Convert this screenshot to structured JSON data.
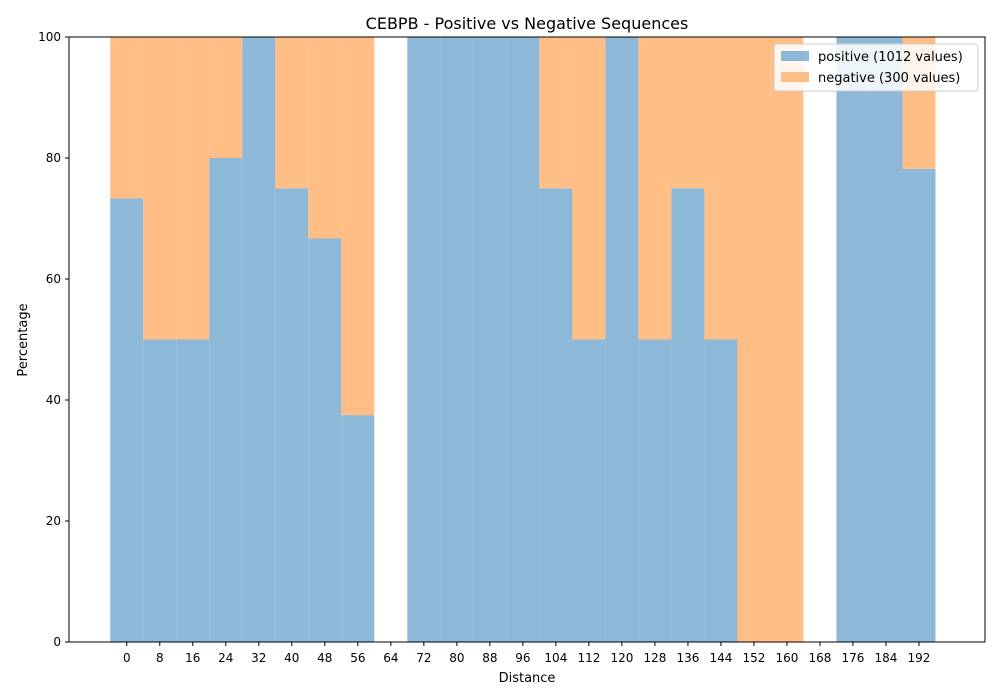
{
  "chart_data": {
    "type": "bar",
    "title": "CEBPB - Positive vs Negative Sequences",
    "xlabel": "Distance",
    "ylabel": "Percentage",
    "ylim": [
      0,
      100
    ],
    "yticks": [
      0,
      20,
      40,
      60,
      80,
      100
    ],
    "xticks": [
      0,
      8,
      16,
      24,
      32,
      40,
      48,
      56,
      64,
      72,
      80,
      88,
      96,
      104,
      112,
      120,
      128,
      136,
      144,
      152,
      160,
      168,
      176,
      184,
      192
    ],
    "x_range": [
      -14,
      208
    ],
    "bin_width": 8,
    "grid": false,
    "legend_position": "top-right",
    "x": [
      0,
      8,
      16,
      24,
      32,
      40,
      48,
      56,
      64,
      72,
      80,
      88,
      96,
      104,
      112,
      120,
      128,
      136,
      144,
      152,
      160,
      168,
      176,
      184,
      192
    ],
    "series": [
      {
        "name": "positive (1012 values)",
        "color": "#8db8d8",
        "values": [
          73.3,
          50,
          50,
          80,
          100,
          75,
          66.7,
          37.5,
          null,
          100,
          100,
          100,
          100,
          75,
          50,
          100,
          50,
          75,
          50,
          0,
          0,
          null,
          100,
          100,
          78.2
        ]
      },
      {
        "name": "negative (300 values)",
        "color": "#ffbe86",
        "values": [
          26.7,
          50,
          50,
          20,
          0,
          25,
          33.3,
          62.5,
          null,
          0,
          0,
          0,
          0,
          25,
          50,
          0,
          50,
          25,
          50,
          100,
          100,
          null,
          0,
          0,
          21.8
        ]
      }
    ]
  }
}
